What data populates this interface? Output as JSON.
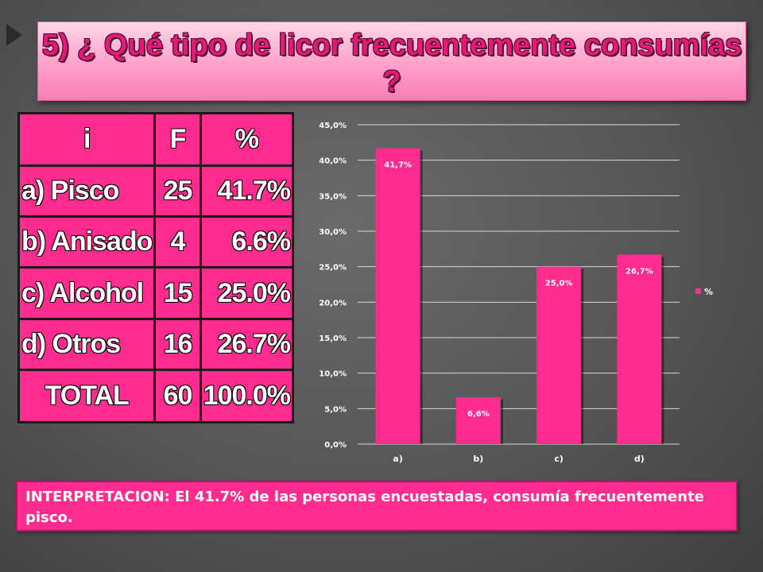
{
  "title": "5) ¿ Qué tipo de licor frecuentemente consumías ?",
  "table": {
    "headers": [
      "i",
      "F",
      "%"
    ],
    "rows": [
      [
        "a) Pisco",
        "25",
        "41.7%"
      ],
      [
        "b) Anisado",
        "4",
        "6.6%"
      ],
      [
        "c) Alcohol",
        "15",
        "25.0%"
      ],
      [
        "d) Otros",
        "16",
        "26.7%"
      ],
      [
        "TOTAL",
        "60",
        "100.0%"
      ]
    ]
  },
  "chart_data": {
    "type": "bar",
    "categories": [
      "a)",
      "b)",
      "c)",
      "d)"
    ],
    "series": [
      {
        "name": "%",
        "values": [
          41.7,
          6.6,
          25.0,
          26.7
        ]
      }
    ],
    "data_labels": [
      "41,7%",
      "6,6%",
      "25,0%",
      "26,7%"
    ],
    "ylim": [
      0,
      45
    ],
    "yticks": [
      0,
      5,
      10,
      15,
      20,
      25,
      30,
      35,
      40,
      45
    ],
    "ytick_labels": [
      "0,0%",
      "5,0%",
      "10,0%",
      "15,0%",
      "20,0%",
      "25,0%",
      "30,0%",
      "35,0%",
      "40,0%",
      "45,0%"
    ],
    "grid": true,
    "legend": "right",
    "bar_color": "#ff2b8f"
  },
  "interpretation": "INTERPRETACION: El 41.7% de las personas encuestadas, consumía frecuentemente pisco.",
  "colors": {
    "accent": "#ff2b8f",
    "title_text": "#e5197a",
    "background": "#555555"
  }
}
